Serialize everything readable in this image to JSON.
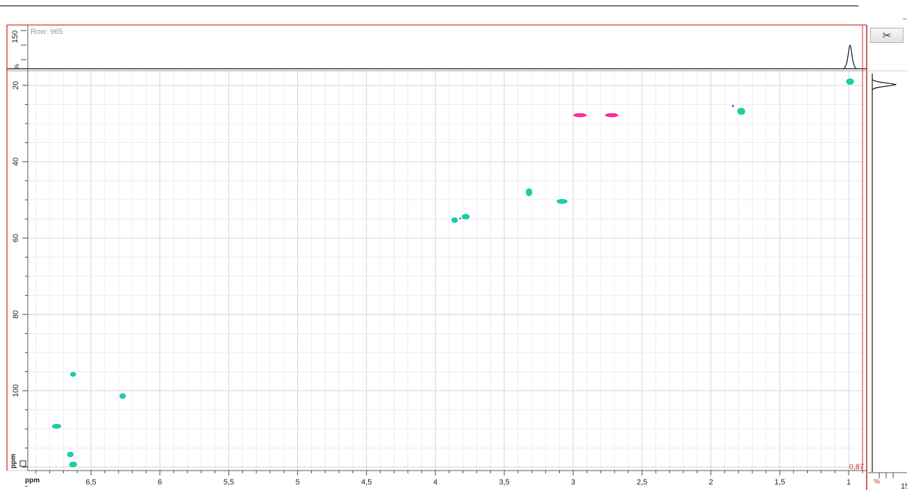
{
  "window": {
    "title_fragment": "",
    "collapse_glyph": "–"
  },
  "toolbar": {
    "scissors_icon": "scissors-icon",
    "scissors_glyph": "✂"
  },
  "top_projection": {
    "row_label": "Row: 965",
    "y_tick_label": "150",
    "percent_label": "%",
    "peak_x_ppm": 0.99
  },
  "side_projection": {
    "percent_label": "%",
    "tick_label": "15",
    "peak_y_ppm": 19.8
  },
  "readout": {
    "value": "0,87"
  },
  "chart_data": {
    "type": "scatter",
    "title": "",
    "xlabel": "ppm",
    "ylabel": "ppm",
    "xlim": [
      6.9,
      0.9
    ],
    "ylim": [
      126,
      17
    ],
    "x_reversed": true,
    "y_downward": true,
    "x_ticks": [
      {
        "v": 6.5,
        "label": "6,5"
      },
      {
        "v": 6,
        "label": "6"
      },
      {
        "v": 5.5,
        "label": "5,5"
      },
      {
        "v": 5,
        "label": "5"
      },
      {
        "v": 4.5,
        "label": "4,5"
      },
      {
        "v": 4,
        "label": "4"
      },
      {
        "v": 3.5,
        "label": "3,5"
      },
      {
        "v": 3,
        "label": "3"
      },
      {
        "v": 2.5,
        "label": "2,5"
      },
      {
        "v": 2,
        "label": "2"
      },
      {
        "v": 1.5,
        "label": "1,5"
      },
      {
        "v": 1,
        "label": "1"
      }
    ],
    "y_ticks": [
      {
        "v": 20,
        "label": "20"
      },
      {
        "v": 40,
        "label": "40"
      },
      {
        "v": 60,
        "label": "60"
      },
      {
        "v": 80,
        "label": "80"
      },
      {
        "v": 100,
        "label": "100"
      }
    ],
    "grid": true,
    "colors": {
      "positive": "#18d88c",
      "positive_dark": "#17b8c9",
      "negative": "#ff1a8c",
      "noise": "#2a3cff",
      "frame": "#cc3333"
    },
    "series": [
      {
        "sign": "positive",
        "points": [
          {
            "x": 0.99,
            "y": 19.0,
            "w": 0.025,
            "h": 0.7
          },
          {
            "x": 1.78,
            "y": 26.8,
            "w": 0.025,
            "h": 0.8
          },
          {
            "x": 3.86,
            "y": 55.3,
            "w": 0.02,
            "h": 0.6
          },
          {
            "x": 3.78,
            "y": 54.4,
            "w": 0.025,
            "h": 0.6
          },
          {
            "x": 3.32,
            "y": 48.0,
            "w": 0.02,
            "h": 0.9
          },
          {
            "x": 3.08,
            "y": 50.4,
            "w": 0.035,
            "h": 0.5
          },
          {
            "x": 6.63,
            "y": 95.7,
            "w": 0.018,
            "h": 0.5
          },
          {
            "x": 6.27,
            "y": 101.4,
            "w": 0.02,
            "h": 0.6
          },
          {
            "x": 6.75,
            "y": 109.3,
            "w": 0.03,
            "h": 0.5
          },
          {
            "x": 6.65,
            "y": 116.7,
            "w": 0.02,
            "h": 0.6
          },
          {
            "x": 6.63,
            "y": 119.3,
            "w": 0.025,
            "h": 0.6
          }
        ]
      },
      {
        "sign": "negative",
        "points": [
          {
            "x": 2.95,
            "y": 27.8,
            "w": 0.045,
            "h": 0.4
          },
          {
            "x": 2.72,
            "y": 27.8,
            "w": 0.045,
            "h": 0.4
          }
        ]
      },
      {
        "sign": "noise",
        "points": [
          {
            "x": 1.84,
            "y": 25.4,
            "w": 0.006,
            "h": 0.3
          },
          {
            "x": 3.82,
            "y": 54.9,
            "w": 0.006,
            "h": 0.2
          }
        ]
      }
    ]
  }
}
